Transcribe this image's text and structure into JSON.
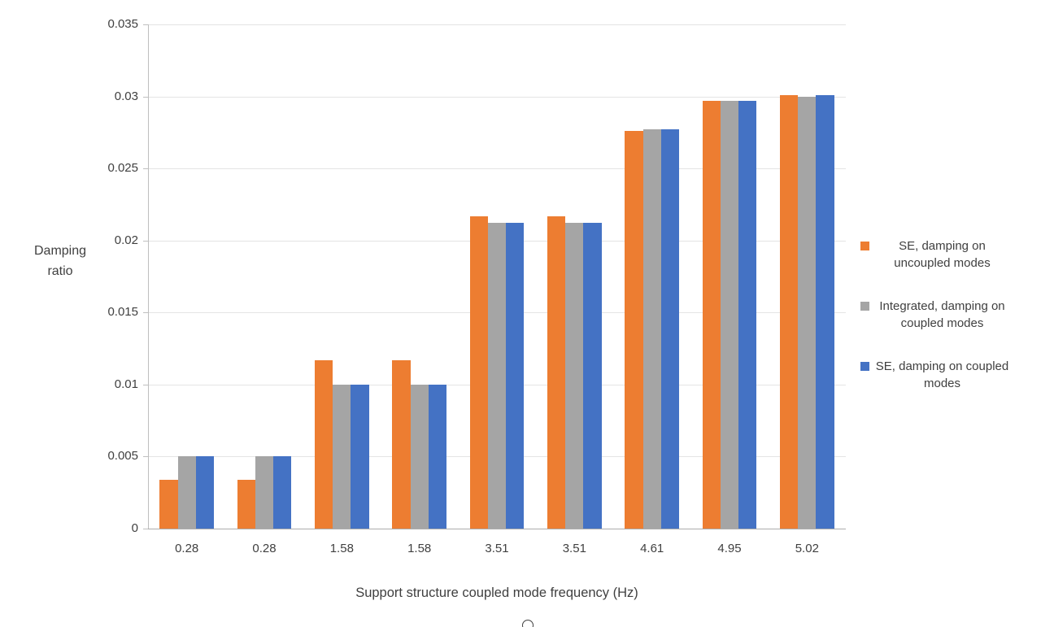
{
  "chart_data": {
    "type": "bar",
    "title": "",
    "xlabel": "Support structure coupled mode frequency (Hz)",
    "ylabel": "Damping ratio",
    "ylim": [
      0,
      0.035
    ],
    "yticks": [
      0,
      0.005,
      0.01,
      0.015,
      0.02,
      0.025,
      0.03,
      0.035
    ],
    "ytick_labels": [
      "0",
      "0.005",
      "0.01",
      "0.015",
      "0.02",
      "0.025",
      "0.03",
      "0.035"
    ],
    "categories": [
      "0.28",
      "0.28",
      "1.58",
      "1.58",
      "3.51",
      "3.51",
      "4.61",
      "4.95",
      "5.02"
    ],
    "grid": true,
    "legend_position": "right",
    "series": [
      {
        "name": "SE, damping on uncoupled modes",
        "color": "#ED7D31",
        "values": [
          0.0034,
          0.0034,
          0.0117,
          0.0117,
          0.0217,
          0.0217,
          0.0276,
          0.0297,
          0.0301
        ]
      },
      {
        "name": "Integrated, damping on coupled modes",
        "color": "#A5A5A5",
        "values": [
          0.005,
          0.005,
          0.01,
          0.01,
          0.0212,
          0.0212,
          0.0277,
          0.0297,
          0.03
        ]
      },
      {
        "name": "SE, damping on coupled modes",
        "color": "#4472C4",
        "values": [
          0.005,
          0.005,
          0.01,
          0.01,
          0.0212,
          0.0212,
          0.0277,
          0.0297,
          0.0301
        ]
      }
    ]
  }
}
